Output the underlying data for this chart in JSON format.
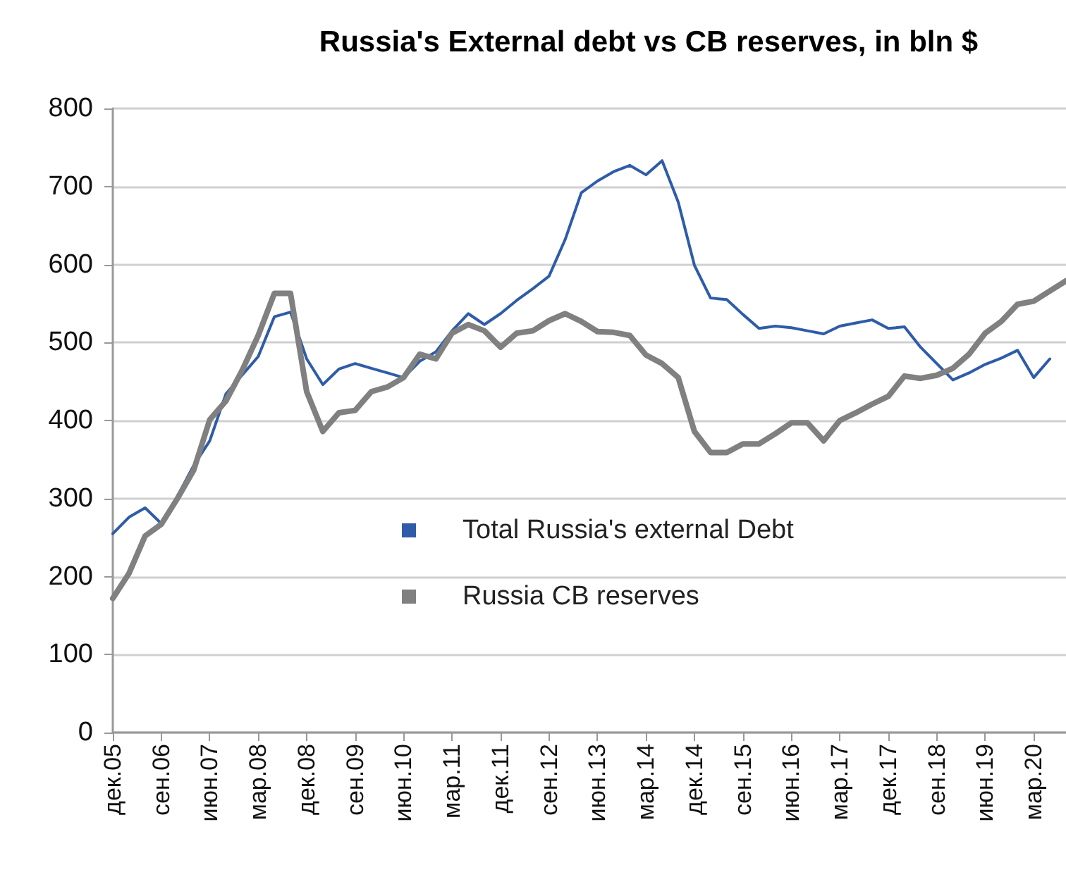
{
  "chart_data": {
    "type": "line",
    "title": "Russia's External debt vs CB reserves, in bln $",
    "categories": [
      "дек.05",
      null,
      null,
      "сен.06",
      null,
      null,
      "июн.07",
      null,
      null,
      "мар.08",
      null,
      null,
      "дек.08",
      null,
      null,
      "сен.09",
      null,
      null,
      "июн.10",
      null,
      null,
      "мар.11",
      null,
      null,
      "дек.11",
      null,
      null,
      "сен.12",
      null,
      null,
      "июн.13",
      null,
      null,
      "мар.14",
      null,
      null,
      "дек.14",
      null,
      null,
      "сен.15",
      null,
      null,
      "июн.16",
      null,
      null,
      "мар.17",
      null,
      null,
      "дек.17",
      null,
      null,
      "сен.18",
      null,
      null,
      "июн.19",
      null,
      null,
      "мар.20",
      null,
      null
    ],
    "series": [
      {
        "name": "Total Russia's external Debt",
        "color": "#2e5ca8",
        "values": [
          255,
          276,
          288,
          268,
          303,
          342,
          374,
          434,
          458,
          482,
          533,
          539,
          479,
          446,
          466,
          473,
          467,
          461,
          455,
          476,
          488,
          515,
          537,
          523,
          537,
          554,
          569,
          585,
          632,
          692,
          707,
          719,
          727,
          715,
          733,
          680,
          599,
          557,
          555,
          536,
          518,
          521,
          519,
          515,
          511,
          521,
          525,
          529,
          518,
          520,
          494,
          473,
          452,
          461,
          472,
          480,
          490,
          455,
          479,
          null
        ]
      },
      {
        "name": "Russia CB reserves",
        "color": "#808080",
        "values": [
          172,
          204,
          252,
          267,
          300,
          336,
          401,
          425,
          464,
          509,
          563,
          563,
          437,
          386,
          410,
          413,
          437,
          443,
          455,
          485,
          479,
          512,
          523,
          515,
          494,
          512,
          515,
          528,
          537,
          527,
          514,
          513,
          509,
          484,
          473,
          455,
          386,
          359,
          359,
          370,
          370,
          383,
          397,
          397,
          374,
          400,
          410,
          421,
          431,
          457,
          454,
          458,
          467,
          485,
          512,
          527,
          549,
          553,
          566,
          579
        ]
      }
    ],
    "ylim": [
      0,
      800
    ],
    "yticks": [
      0,
      100,
      200,
      300,
      400,
      500,
      600,
      700,
      800
    ],
    "grid": "y",
    "legend": "bottom",
    "marker": "none",
    "line_style": "solid"
  }
}
